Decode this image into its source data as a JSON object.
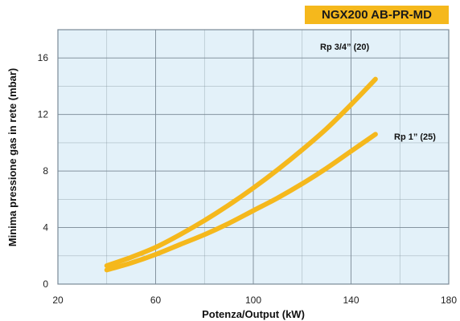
{
  "chart_data": {
    "type": "line",
    "title": "NGX200 AB-PR-MD",
    "xlabel": "Potenza/Output (kW)",
    "ylabel": "Minima pressione gas in rete (mbar)",
    "xlim": [
      20,
      180
    ],
    "ylim": [
      0,
      18
    ],
    "xticks": [
      20,
      60,
      100,
      140,
      180
    ],
    "yticks": [
      0,
      4,
      8,
      12,
      16
    ],
    "grid": true,
    "colors": {
      "series": "#f5b81c",
      "plot_background": "#e3f1f9",
      "grid": "#7a8a96",
      "title_background": "#f5b81c"
    },
    "series": [
      {
        "name": "Rp 3/4” (20)",
        "x": [
          40,
          50,
          60,
          70,
          80,
          90,
          100,
          110,
          120,
          130,
          140,
          150
        ],
        "y": [
          1.3,
          1.9,
          2.6,
          3.5,
          4.5,
          5.6,
          6.8,
          8.1,
          9.5,
          11.0,
          12.7,
          14.5
        ]
      },
      {
        "name": "Rp 1” (25)",
        "x": [
          40,
          50,
          60,
          70,
          80,
          90,
          100,
          110,
          120,
          130,
          140,
          150
        ],
        "y": [
          1.0,
          1.5,
          2.1,
          2.8,
          3.5,
          4.3,
          5.2,
          6.1,
          7.1,
          8.2,
          9.4,
          10.6
        ]
      }
    ]
  }
}
